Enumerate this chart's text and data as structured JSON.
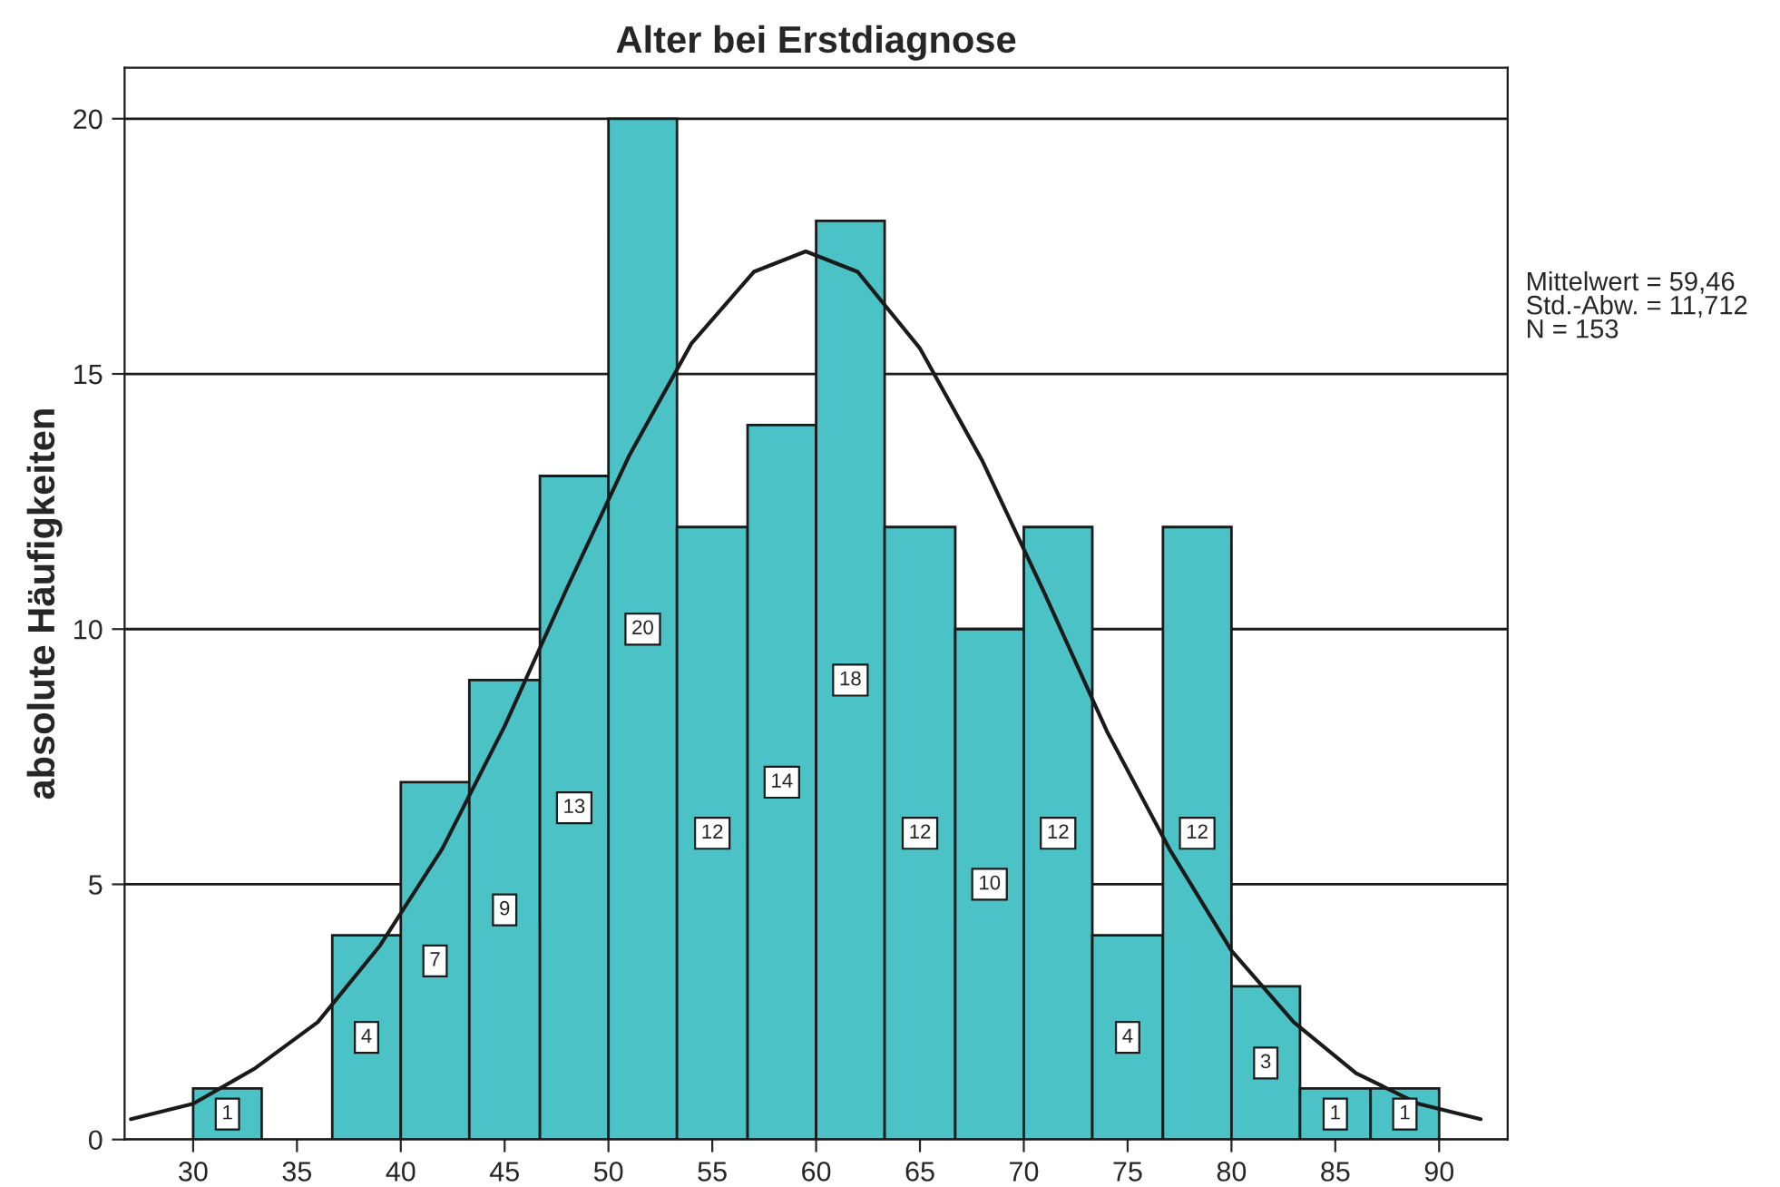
{
  "chart_data": {
    "type": "histogram",
    "title": "Alter bei Erstdiagnose",
    "ylabel": "absolute Häufigkeiten",
    "bins": [
      30,
      33.3,
      36.7,
      40,
      43.3,
      46.7,
      50,
      53.3,
      56.7,
      60,
      63.3,
      66.7,
      70,
      73.3,
      76.7,
      80,
      83.3,
      86.7,
      90
    ],
    "values": [
      1,
      0,
      4,
      7,
      9,
      13,
      20,
      12,
      14,
      18,
      12,
      10,
      12,
      4,
      12,
      3,
      1,
      1
    ],
    "value_labels": [
      "1",
      null,
      "4",
      "7",
      "9",
      "13",
      "20",
      "12",
      "14",
      "18",
      "12",
      "10",
      "12",
      "4",
      "12",
      "3",
      "1",
      "1"
    ],
    "color": "#4bc2c5",
    "series": [
      {
        "type": "line",
        "color": "#1a1a1a",
        "x": [
          27,
          30,
          33,
          36,
          39,
          42,
          45,
          48,
          51,
          54,
          57,
          59.5,
          62,
          65,
          68,
          71,
          74,
          77,
          80,
          83,
          86,
          89,
          92
        ],
        "values": [
          0.4,
          0.7,
          1.4,
          2.3,
          3.8,
          5.7,
          8.1,
          10.8,
          13.4,
          15.6,
          17.0,
          17.4,
          17.0,
          15.5,
          13.3,
          10.7,
          8.0,
          5.7,
          3.7,
          2.3,
          1.3,
          0.7,
          0.4
        ]
      }
    ],
    "xlim": [
      26.7,
      93.3
    ],
    "ylim": [
      0,
      21
    ],
    "xticks": [
      30,
      35,
      40,
      45,
      50,
      55,
      60,
      65,
      70,
      75,
      80,
      85,
      90
    ],
    "yticks": [
      0,
      5,
      10,
      15,
      20
    ],
    "grid": "y",
    "annotations": [
      "Mittelwert = 59,46",
      "Std.-Abw. = 11,712",
      "N = 153"
    ]
  }
}
